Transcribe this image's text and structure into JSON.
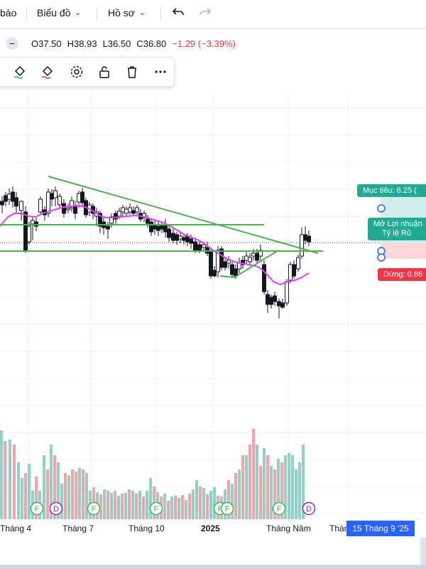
{
  "topbar": {
    "alert_label": "báo",
    "chart_menu_label": "Biểu đồ",
    "profile_menu_label": "Hồ sơ"
  },
  "ohlc": {
    "open": "O37.50",
    "high": "H38.93",
    "low": "L36.50",
    "close": "C36.80",
    "change": "−1.29 (−3.39%)",
    "change_color": "#f23645"
  },
  "trade": {
    "target_label": "Mục tiêu: 6.25 (",
    "open_line1": "Mở Lợi nhuận",
    "open_line2": "Tỷ lệ Rủ",
    "stop_label": "Dừng: 0.86"
  },
  "xaxis": {
    "labels": [
      "Tháng 4",
      "Tháng 7",
      "Tháng 10",
      "2025",
      "Tháng Năm",
      "Thán"
    ],
    "current": "15 Tháng 9 '25"
  },
  "colors": {
    "up": "#26a69a",
    "down": "#131722",
    "trendline": "#4caf50",
    "ma": "#e040fb",
    "vol_up": "#8fd3c8",
    "vol_down": "#f5a3a8",
    "target": "#22ab94",
    "stop": "#f23645",
    "accent": "#2962ff"
  },
  "chart_data": {
    "type": "candlestick",
    "events": [
      "F",
      "D",
      "F",
      "F",
      "F",
      "F",
      "F",
      "D"
    ]
  }
}
